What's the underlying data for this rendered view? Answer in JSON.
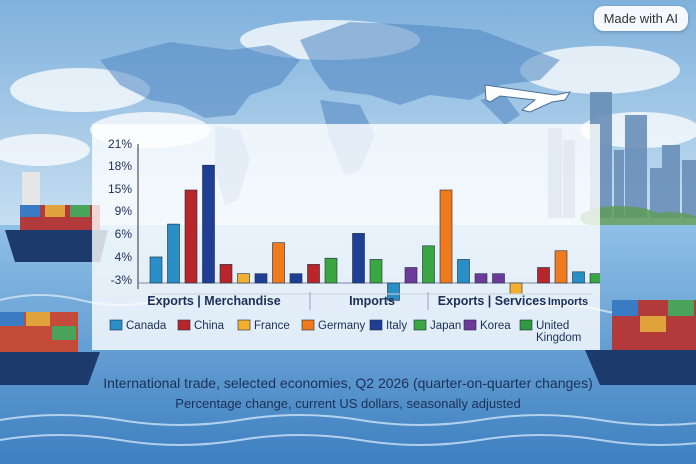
{
  "badge": {
    "label": "Made with AI"
  },
  "caption": {
    "title": "International trade, selected economies, Q2 2026 (quarter-on-quarter changes)",
    "subtitle": "Percentage change, current US dollars, seasonally adjusted"
  },
  "colors": {
    "Canada": "#2a8fc7",
    "China": "#b8262a",
    "France": "#f3b02e",
    "Germany": "#f07a1c",
    "Italy": "#1f3f95",
    "Japan": "#3aa641",
    "Korea": "#6c3a98",
    "United Kingdom": "#2f9a3f"
  },
  "chart_data": {
    "type": "bar",
    "title": "International trade, selected economies, Q2 2026 (quarter-on-quarter changes)",
    "subtitle": "Percentage change, current US dollars, seasonally adjusted",
    "ylabel": "",
    "y_ticks": [
      "21%",
      "18%",
      "15%",
      "9%",
      "6%",
      "4%",
      "-3%"
    ],
    "legend": [
      "Canada",
      "China",
      "France",
      "Germany",
      "Italy",
      "Japan",
      "Korea",
      "United Kingdom"
    ],
    "legend_labels": [
      "Canada",
      "China",
      "France",
      "Germany",
      "Italy",
      "Japan",
      "Korea",
      "United",
      "Kingdom"
    ],
    "legend_position": "bottom",
    "groups": [
      {
        "label_main": "Exports",
        "label_sub": "Merchandise"
      },
      {
        "label_main": "Imports",
        "label_sub": ""
      },
      {
        "label_main": "Exports",
        "label_sub": "Services"
      },
      {
        "label_main": "Imports",
        "label_sub": ""
      }
    ],
    "series": [
      {
        "group": 0,
        "sequence": [
          "Canada",
          "Canada",
          "China",
          "Italy",
          "China",
          "France",
          "Italy",
          "Germany",
          "Italy",
          "China",
          "Japan"
        ],
        "values": [
          4.2,
          9.5,
          15.0,
          19.0,
          3.0,
          1.5,
          1.5,
          6.5,
          1.5,
          3.0,
          4.0
        ]
      },
      {
        "group": 1,
        "sequence": [
          "Italy",
          "Japan",
          "Canada",
          "Korea",
          "Japan",
          "Germany",
          "Canada",
          "Korea",
          "Korea",
          "France"
        ],
        "values": [
          8.0,
          3.8,
          -2.8,
          2.5,
          6.0,
          15.0,
          3.8,
          1.5,
          1.5,
          -1.8
        ]
      },
      {
        "group": 2,
        "sequence": [
          "China",
          "Germany",
          "Canada",
          "Japan",
          "Canada",
          "Germany",
          "Japan",
          "Italy",
          "Japan"
        ],
        "values": [
          2.5,
          5.2,
          1.8,
          1.5,
          3.5,
          10.5,
          3.0,
          2.0,
          -2.8
        ]
      }
    ]
  }
}
